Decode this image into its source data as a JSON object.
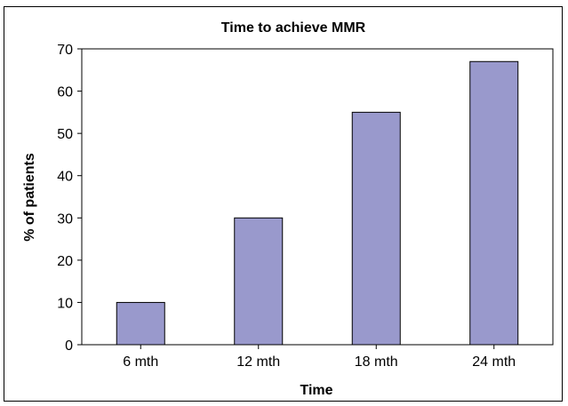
{
  "chart_data": {
    "type": "bar",
    "title": "Time to achieve MMR",
    "xlabel": "Time",
    "ylabel": "% of patients",
    "categories": [
      "6 mth",
      "12 mth",
      "18 mth",
      "24 mth"
    ],
    "values": [
      10,
      30,
      55,
      67
    ],
    "ylim": [
      0,
      70
    ],
    "yticks": [
      0,
      10,
      20,
      30,
      40,
      50,
      60,
      70
    ],
    "grid": false,
    "bar_color": "#9999cc",
    "bar_edge_color": "#000000"
  }
}
